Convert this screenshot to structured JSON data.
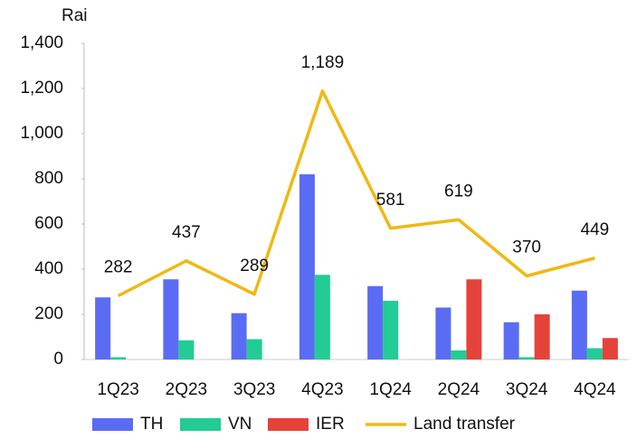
{
  "chart_data": {
    "type": "bar-line",
    "y_axis_label": "Rai",
    "categories": [
      "1Q23",
      "2Q23",
      "3Q23",
      "4Q23",
      "1Q24",
      "2Q24",
      "3Q24",
      "4Q24"
    ],
    "series": [
      {
        "name": "TH",
        "type": "bar",
        "color": "#5b6cf4",
        "values": [
          275,
          355,
          205,
          820,
          325,
          230,
          165,
          305
        ]
      },
      {
        "name": "VN",
        "type": "bar",
        "color": "#22cc94",
        "values": [
          10,
          85,
          90,
          375,
          260,
          40,
          10,
          50
        ]
      },
      {
        "name": "IER",
        "type": "bar",
        "color": "#e5423a",
        "values": [
          0,
          0,
          0,
          0,
          0,
          355,
          200,
          95
        ]
      },
      {
        "name": "Land transfer",
        "type": "line",
        "color": "#f0b814",
        "values": [
          282,
          437,
          289,
          1189,
          581,
          619,
          370,
          449
        ],
        "value_labels": [
          "282",
          "437",
          "289",
          "1,189",
          "581",
          "619",
          "370",
          "449"
        ]
      }
    ],
    "ylim": [
      0,
      1400
    ],
    "yticks": [
      0,
      200,
      400,
      600,
      800,
      {
        "value": 1000,
        "label": "1,000"
      },
      {
        "value": 1200,
        "label": "1,200"
      },
      {
        "value": 1400,
        "label": "1,400"
      }
    ],
    "grid": false,
    "legend": "bottom"
  }
}
